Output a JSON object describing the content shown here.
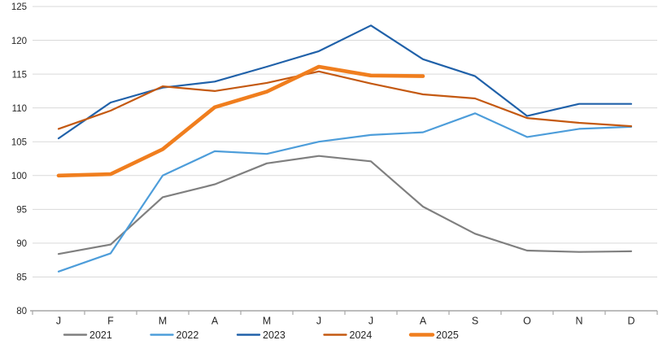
{
  "chart_data": {
    "type": "line",
    "title": "",
    "xlabel": "",
    "ylabel": "",
    "categories": [
      "J",
      "F",
      "M",
      "A",
      "M",
      "J",
      "J",
      "A",
      "S",
      "O",
      "N",
      "D"
    ],
    "series": [
      {
        "name": "2021",
        "color": "#7f7f7f",
        "stroke_width": 2.2,
        "values": [
          88.4,
          89.8,
          96.8,
          98.7,
          101.8,
          102.9,
          102.1,
          95.4,
          91.4,
          88.9,
          88.7,
          88.8
        ]
      },
      {
        "name": "2022",
        "color": "#4d9dda",
        "stroke_width": 2.2,
        "values": [
          85.8,
          88.5,
          100.0,
          103.6,
          103.2,
          105.0,
          106.0,
          106.4,
          109.2,
          105.7,
          106.9,
          107.2
        ]
      },
      {
        "name": "2023",
        "color": "#2061a9",
        "stroke_width": 2.2,
        "values": [
          105.5,
          110.8,
          113.0,
          113.9,
          116.1,
          118.4,
          122.2,
          117.2,
          114.7,
          108.8,
          110.6,
          110.6
        ]
      },
      {
        "name": "2024",
        "color": "#c45911",
        "stroke_width": 2.2,
        "values": [
          106.9,
          109.6,
          113.2,
          112.5,
          113.7,
          115.4,
          113.6,
          112.0,
          111.4,
          108.5,
          107.8,
          107.3
        ]
      },
      {
        "name": "2025",
        "color": "#f07e1e",
        "stroke_width": 4.6,
        "values": [
          100.0,
          100.2,
          103.9,
          110.1,
          112.4,
          116.1,
          114.8,
          114.7
        ]
      }
    ],
    "ylim": [
      80,
      125
    ],
    "ytick_step": 5,
    "y_tick_labels": [
      "80",
      "85",
      "90",
      "95",
      "100",
      "105",
      "110",
      "115",
      "120",
      "125"
    ],
    "grid": "horizontal",
    "legend_position": "bottom",
    "legend_labels": [
      "2021",
      "2022",
      "2023",
      "2024",
      "2025"
    ]
  },
  "style": {
    "background_color": "#ffffff",
    "grid_color": "#d9d9d9",
    "axis_color": "#a6a6a6",
    "text_color": "#262626"
  }
}
